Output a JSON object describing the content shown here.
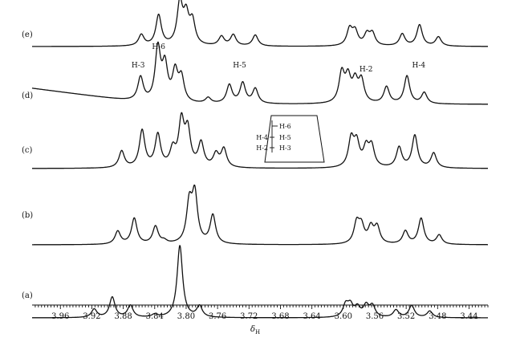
{
  "chart_data": {
    "type": "line",
    "xlabel": "δH",
    "x_ticks": [
      3.96,
      3.92,
      3.88,
      3.84,
      3.8,
      3.76,
      3.72,
      3.68,
      3.64,
      3.6,
      3.56,
      3.52,
      3.48,
      3.44
    ],
    "x_tick_labels": [
      "3.96",
      "3.92",
      "3.88",
      "3.84",
      "3.80",
      "3.76",
      "3.72",
      "3.68",
      "3.64",
      "3.60",
      "3.56",
      "3.52",
      "3.48",
      "3.44"
    ],
    "xlim": [
      3.996,
      3.416
    ],
    "x_reversed": true,
    "series": [
      {
        "name": "(a)",
        "baseline": "flat",
        "peaks": [
          {
            "x": 3.917,
            "h": 0.09
          },
          {
            "x": 3.894,
            "h": 0.22
          },
          {
            "x": 3.871,
            "h": 0.13
          },
          {
            "x": 3.84,
            "h": 0.03
          },
          {
            "x": 3.808,
            "h": 0.78
          },
          {
            "x": 3.783,
            "h": 0.12
          },
          {
            "x": 3.597,
            "h": 0.13
          },
          {
            "x": 3.591,
            "h": 0.12
          },
          {
            "x": 3.582,
            "h": 0.1
          },
          {
            "x": 3.571,
            "h": 0.12
          },
          {
            "x": 3.563,
            "h": 0.12
          },
          {
            "x": 3.533,
            "h": 0.08
          },
          {
            "x": 3.513,
            "h": 0.13
          },
          {
            "x": 3.49,
            "h": 0.07
          }
        ]
      },
      {
        "name": "(b)",
        "baseline": "flat",
        "peaks": [
          {
            "x": 3.887,
            "h": 0.14
          },
          {
            "x": 3.866,
            "h": 0.28
          },
          {
            "x": 3.839,
            "h": 0.19
          },
          {
            "x": 3.828,
            "h": 0.03
          },
          {
            "x": 3.796,
            "h": 0.42
          },
          {
            "x": 3.789,
            "h": 0.52
          },
          {
            "x": 3.766,
            "h": 0.31
          },
          {
            "x": 3.583,
            "h": 0.22
          },
          {
            "x": 3.577,
            "h": 0.18
          },
          {
            "x": 3.565,
            "h": 0.17
          },
          {
            "x": 3.557,
            "h": 0.18
          },
          {
            "x": 3.521,
            "h": 0.14
          },
          {
            "x": 3.501,
            "h": 0.28
          },
          {
            "x": 3.478,
            "h": 0.1
          }
        ]
      },
      {
        "name": "(c)",
        "baseline": "flat",
        "peaks": [
          {
            "x": 3.882,
            "h": 0.18
          },
          {
            "x": 3.856,
            "h": 0.4
          },
          {
            "x": 3.836,
            "h": 0.35
          },
          {
            "x": 3.817,
            "h": 0.18
          },
          {
            "x": 3.806,
            "h": 0.48
          },
          {
            "x": 3.798,
            "h": 0.38
          },
          {
            "x": 3.781,
            "h": 0.26
          },
          {
            "x": 3.762,
            "h": 0.14
          },
          {
            "x": 3.752,
            "h": 0.2
          },
          {
            "x": 3.59,
            "h": 0.3
          },
          {
            "x": 3.583,
            "h": 0.25
          },
          {
            "x": 3.571,
            "h": 0.2
          },
          {
            "x": 3.564,
            "h": 0.22
          },
          {
            "x": 3.529,
            "h": 0.22
          },
          {
            "x": 3.509,
            "h": 0.35
          },
          {
            "x": 3.485,
            "h": 0.16
          }
        ]
      },
      {
        "name": "(d)",
        "baseline": "rising",
        "peak_labels": [
          {
            "text": "H-3",
            "x": 3.861,
            "y": 84
          },
          {
            "text": "H-6",
            "x": 3.835,
            "y": 61
          },
          {
            "text": "H-5",
            "x": 3.732,
            "y": 84
          },
          {
            "text": "H-2",
            "x": 3.571,
            "y": 89
          },
          {
            "text": "H-4",
            "x": 3.504,
            "y": 84
          }
        ],
        "peaks": [
          {
            "x": 3.858,
            "h": 0.26
          },
          {
            "x": 3.836,
            "h": 0.58
          },
          {
            "x": 3.827,
            "h": 0.38
          },
          {
            "x": 3.814,
            "h": 0.32
          },
          {
            "x": 3.806,
            "h": 0.26
          },
          {
            "x": 3.772,
            "h": 0.06
          },
          {
            "x": 3.745,
            "h": 0.2
          },
          {
            "x": 3.728,
            "h": 0.22
          },
          {
            "x": 3.712,
            "h": 0.16
          },
          {
            "x": 3.602,
            "h": 0.32
          },
          {
            "x": 3.594,
            "h": 0.26
          },
          {
            "x": 3.585,
            "h": 0.22
          },
          {
            "x": 3.577,
            "h": 0.24
          },
          {
            "x": 3.545,
            "h": 0.18
          },
          {
            "x": 3.519,
            "h": 0.3
          },
          {
            "x": 3.497,
            "h": 0.12
          }
        ]
      },
      {
        "name": "(e)",
        "baseline": "flat",
        "peaks": [
          {
            "x": 3.857,
            "h": 0.12
          },
          {
            "x": 3.835,
            "h": 0.33
          },
          {
            "x": 3.808,
            "h": 0.45
          },
          {
            "x": 3.8,
            "h": 0.3
          },
          {
            "x": 3.792,
            "h": 0.25
          },
          {
            "x": 3.755,
            "h": 0.1
          },
          {
            "x": 3.74,
            "h": 0.12
          },
          {
            "x": 3.712,
            "h": 0.12
          },
          {
            "x": 3.592,
            "h": 0.18
          },
          {
            "x": 3.585,
            "h": 0.15
          },
          {
            "x": 3.57,
            "h": 0.12
          },
          {
            "x": 3.563,
            "h": 0.13
          },
          {
            "x": 3.525,
            "h": 0.13
          },
          {
            "x": 3.503,
            "h": 0.23
          },
          {
            "x": 3.479,
            "h": 0.1
          }
        ]
      }
    ],
    "inset": {
      "labels": [
        "H-6",
        "H-4",
        "H-5",
        "H-2",
        "H-3"
      ]
    }
  }
}
